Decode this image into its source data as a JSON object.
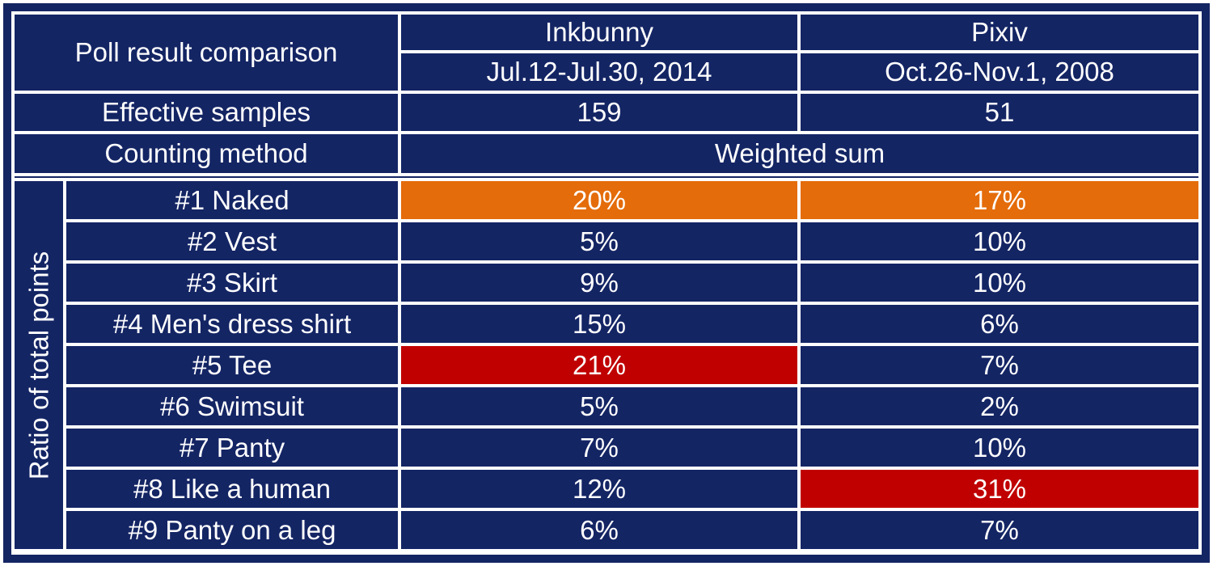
{
  "table": {
    "title": "Poll result comparison",
    "cell_color": "#142564",
    "columns": [
      {
        "name": "Inkbunny",
        "period": "Jul.12-Jul.30, 2014"
      },
      {
        "name": "Pixiv",
        "period": "Oct.26-Nov.1, 2008"
      }
    ],
    "effective_samples": {
      "label": "Effective samples",
      "values": [
        159,
        51
      ]
    },
    "counting_method": {
      "label": "Counting method",
      "value": "Weighted sum"
    },
    "group_label": "Ratio of total points",
    "rows": [
      {
        "label": "#1 Naked",
        "values": [
          "20%",
          "17%"
        ],
        "colors": [
          "#e46c0a",
          "#e46c0a"
        ]
      },
      {
        "label": "#2 Vest",
        "values": [
          "5%",
          "10%"
        ],
        "colors": [
          "#142564",
          "#142564"
        ]
      },
      {
        "label": "#3 Skirt",
        "values": [
          "9%",
          "10%"
        ],
        "colors": [
          "#142564",
          "#142564"
        ]
      },
      {
        "label": "#4 Men's dress shirt",
        "values": [
          "15%",
          "6%"
        ],
        "colors": [
          "#142564",
          "#142564"
        ]
      },
      {
        "label": "#5 Tee",
        "values": [
          "21%",
          "7%"
        ],
        "colors": [
          "#c00000",
          "#142564"
        ]
      },
      {
        "label": "#6 Swimsuit",
        "values": [
          "5%",
          "2%"
        ],
        "colors": [
          "#142564",
          "#142564"
        ]
      },
      {
        "label": "#7 Panty",
        "values": [
          "7%",
          "10%"
        ],
        "colors": [
          "#142564",
          "#142564"
        ]
      },
      {
        "label": "#8 Like a human",
        "values": [
          "12%",
          "31%"
        ],
        "colors": [
          "#142564",
          "#c00000"
        ]
      },
      {
        "label": "#9 Panty on a leg",
        "values": [
          "6%",
          "7%"
        ],
        "colors": [
          "#142564",
          "#142564"
        ]
      }
    ]
  }
}
